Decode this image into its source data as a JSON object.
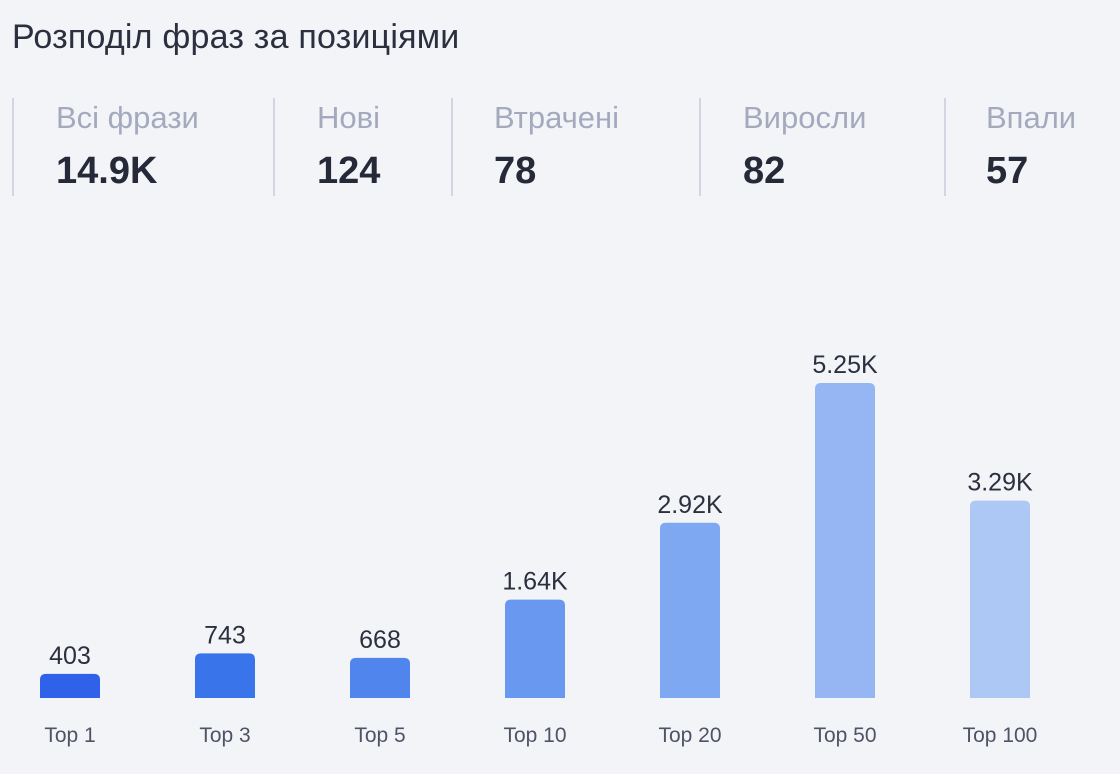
{
  "title": "Розподіл фраз за позиціями",
  "stats": [
    {
      "label": "Всі фрази",
      "value": "14.9K"
    },
    {
      "label": "Нові",
      "value": "124"
    },
    {
      "label": "Втрачені",
      "value": "78"
    },
    {
      "label": "Виросли",
      "value": "82"
    },
    {
      "label": "Впали",
      "value": "57"
    }
  ],
  "chart_data": {
    "type": "bar",
    "title": "",
    "xlabel": "",
    "ylabel": "",
    "categories": [
      "Top 1",
      "Top 3",
      "Top 5",
      "Top 10",
      "Top 20",
      "Top 50",
      "Top 100"
    ],
    "values": [
      403,
      743,
      668,
      1640,
      2920,
      5250,
      3290
    ],
    "value_labels": [
      "403",
      "743",
      "668",
      "1.64K",
      "2.92K",
      "5.25K",
      "3.29K"
    ],
    "colors": [
      "#2f62e8",
      "#3a74ea",
      "#4f85ec",
      "#6898ef",
      "#7ea8f1",
      "#95b6f2",
      "#adc8f4"
    ],
    "ylim": [
      0,
      5250
    ],
    "grid": false,
    "legend": "none"
  }
}
